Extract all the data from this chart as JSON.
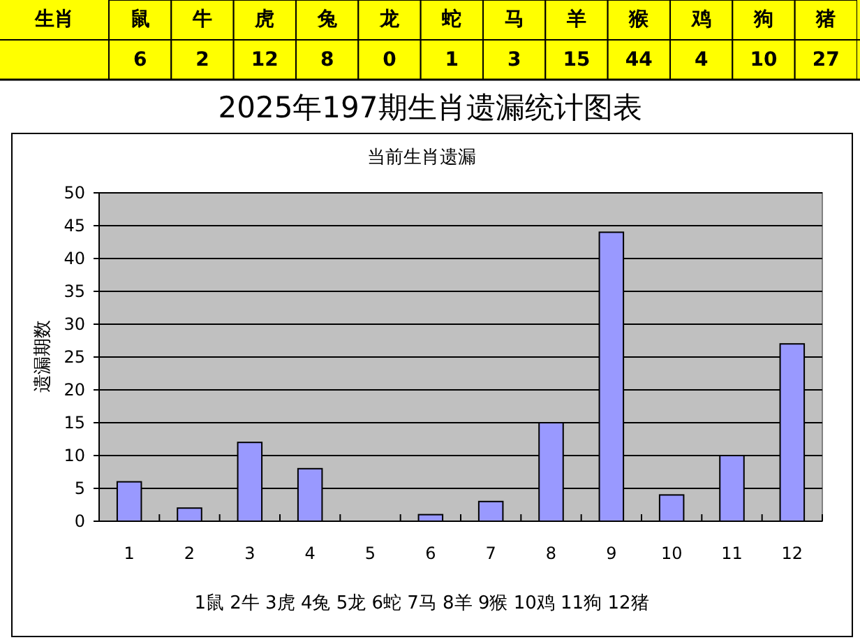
{
  "chart_data": [
    {
      "type": "other",
      "annotations": [
        "生肖"
      ],
      "categories": [
        "鼠",
        "牛",
        "虎",
        "兔",
        "龙",
        "蛇",
        "马",
        "羊",
        "猴",
        "鸡",
        "狗",
        "猪"
      ],
      "values": [
        6,
        2,
        12,
        8,
        0,
        1,
        3,
        15,
        44,
        4,
        10,
        27
      ],
      "color": "#ffff00",
      "data_labels": true
    },
    {
      "type": "bar",
      "title": "2025年197期生肖遗漏统计图表",
      "subtitle": "当前生肖遗漏",
      "ylabel": "遗漏期数",
      "xlabel": "1鼠 2牛 3虎 4兔 5龙 6蛇 7马 8羊 9猴 10鸡 11狗 12猪",
      "categories": [
        "1",
        "2",
        "3",
        "4",
        "5",
        "6",
        "7",
        "8",
        "9",
        "10",
        "11",
        "12"
      ],
      "values": [
        6,
        2,
        12,
        8,
        0,
        1,
        3,
        15,
        44,
        4,
        10,
        27
      ],
      "color": "#9999ff",
      "grid": "y",
      "ylim": [
        0,
        50
      ],
      "yticks": [
        0,
        5,
        10,
        15,
        20,
        25,
        30,
        35,
        40,
        45,
        50
      ]
    }
  ]
}
